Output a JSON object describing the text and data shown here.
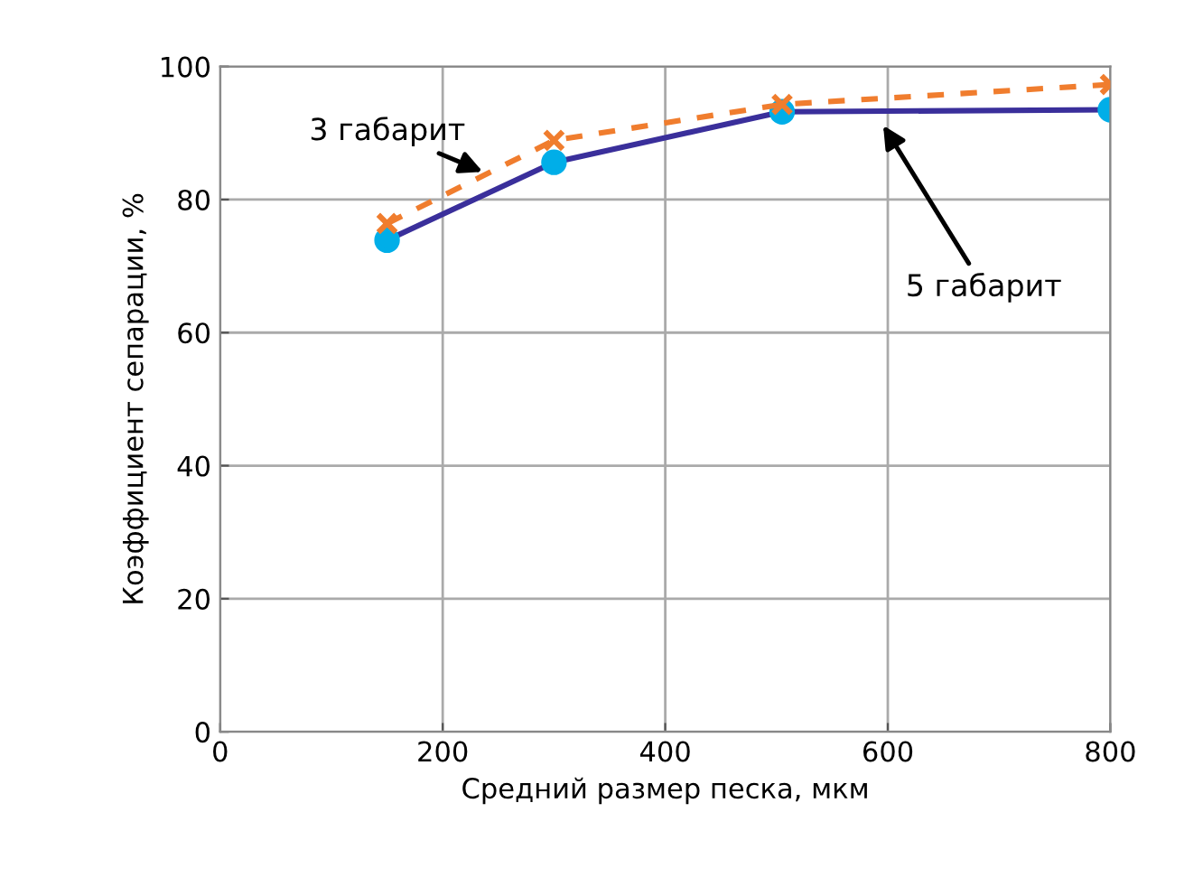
{
  "chart_data": {
    "type": "line",
    "xlabel": "Средний размер песка, мкм",
    "ylabel": "Коэффициент сепарации, %",
    "x": [
      150,
      300,
      505,
      800
    ],
    "series": [
      {
        "name": "3 габарит",
        "color": "#f07d2e",
        "values": [
          76.4,
          88.9,
          94.3,
          97.3
        ],
        "marker": "cross",
        "line_style": "dashed"
      },
      {
        "name": "5 габарит",
        "color": "#3a2f9b",
        "values": [
          73.9,
          85.6,
          93.2,
          93.5
        ],
        "marker": "circle",
        "line_style": "solid"
      }
    ],
    "xlim": [
      0,
      800
    ],
    "xticks": [
      0,
      200,
      400,
      600,
      800
    ],
    "ylim": [
      0,
      100
    ],
    "yticks": [
      0,
      20,
      40,
      60,
      80,
      100
    ],
    "grid": true,
    "legend": false
  }
}
